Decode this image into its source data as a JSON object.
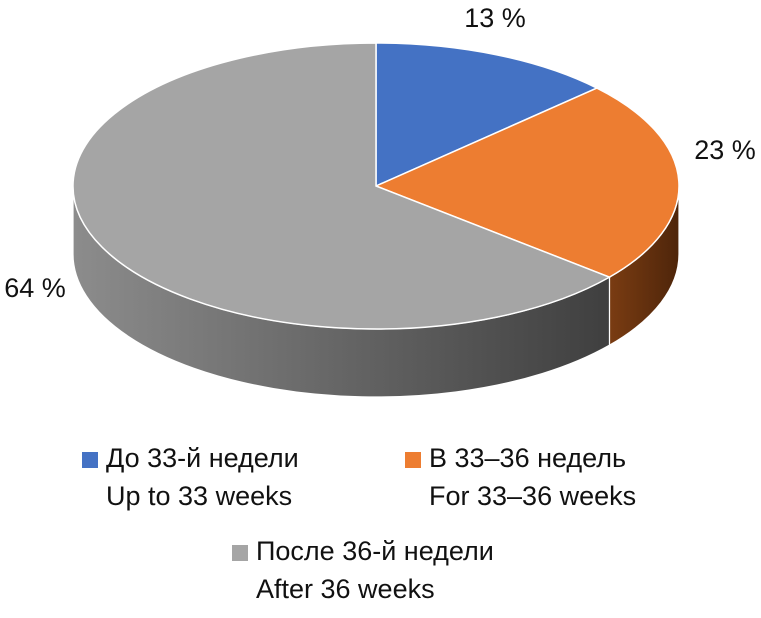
{
  "chart_data": {
    "type": "pie3d",
    "categories": [
      [
        "До 33-й недели",
        "Up to 33 weeks"
      ],
      [
        "В 33–36 недель",
        "For 33–36 weeks"
      ],
      [
        "После 36-й недели",
        "After 36 weeks"
      ]
    ],
    "values": [
      13,
      23,
      64
    ],
    "value_labels": [
      "13 %",
      "23 %",
      "64 %"
    ],
    "colors": [
      "#4472c4",
      "#ed7d31",
      "#a5a5a5"
    ]
  }
}
